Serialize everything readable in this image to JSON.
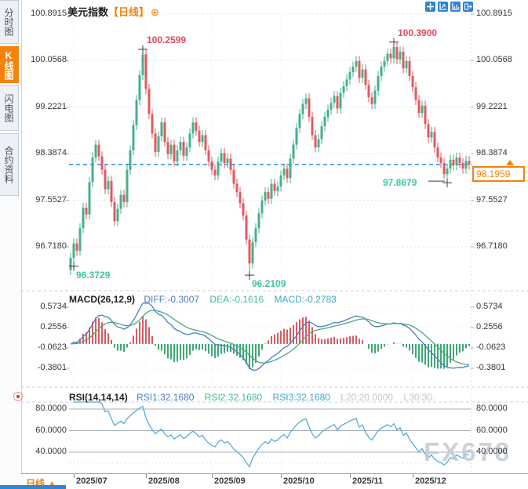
{
  "header": {
    "title": "美元指数",
    "period": "【日线】",
    "add_icon": "⊕",
    "toolbar_icons": [
      "crosshair-icon",
      "scale-axis-icon",
      "bar-scale-icon",
      "exit-icon"
    ]
  },
  "sidebar": {
    "tabs": [
      {
        "label": "分时图",
        "active": false
      },
      {
        "label": "K线图",
        "active": true
      },
      {
        "label": "闪电图",
        "active": false
      },
      {
        "label": "合约资料",
        "active": false
      }
    ]
  },
  "main_chart": {
    "current_price_label": "98.1959",
    "price_axis_labels": [
      "100.8915",
      "100.0568",
      "99.2221",
      "98.3874",
      "97.5527",
      "96.7180"
    ]
  },
  "macd_panel": {
    "name": "MACD(26,12,9)",
    "diff_label": "DIFF:-0.3007",
    "dea_label": "DEA:-0.1616",
    "macd_label": "MACD:-0.2783",
    "axis_labels": [
      "0.5734",
      "0.2556",
      "-0.0623",
      "-0.3801"
    ]
  },
  "rsi_panel": {
    "name": "RSI(14,14,14)",
    "rsi1_label": "RSI1:32.1680",
    "rsi2_label": "RSI2:32.1680",
    "rsi3_label": "RSI3:32.1680",
    "l20_label": "L20:20.0000",
    "l30_label": "L30:30.",
    "axis_labels": [
      "80.0000",
      "60.0000",
      "40.0000"
    ]
  },
  "bottom_bar": {
    "period_label": "日线",
    "period_arrow": "▲"
  },
  "watermark": "FX678",
  "colors": {
    "up": "#45b18a",
    "down": "#e15a5f",
    "hist_pos": "#d65b60",
    "hist_neg": "#3fa878",
    "diff_line": "#4a7ec2",
    "dea_line": "#4ba97a",
    "rsi_line": "#57abd9",
    "current_line": "#1e7fe8",
    "accent_orange": "#f5820a",
    "ann_high": "#e4485c",
    "ann_low": "#3ec6a0",
    "grid": "#dfe3e9",
    "grid_month": "#e6e9f0",
    "rsi_grid": "#aab0ba",
    "separator": "#ccd2da"
  },
  "chart_data": {
    "type": "candlestick",
    "title": "美元指数 日线",
    "current_price": 98.1959,
    "price_axis": [
      100.8915,
      100.0568,
      99.2221,
      98.3874,
      97.5527,
      96.718
    ],
    "macd_axis": [
      0.5734,
      0.2556,
      -0.0623,
      -0.3801
    ],
    "rsi_axis": [
      80,
      60,
      40
    ],
    "rsi_extra_levels": [
      30
    ],
    "months": [
      {
        "bar": 1,
        "label": "2025/07"
      },
      {
        "bar": 24,
        "label": "2025/08"
      },
      {
        "bar": 45,
        "label": "2025/09"
      },
      {
        "bar": 67,
        "label": "2025/10"
      },
      {
        "bar": 89,
        "label": "2025/11"
      },
      {
        "bar": 109,
        "label": "2025/12"
      }
    ],
    "series": {
      "first_open": 96.3,
      "wick_pad": 0.09,
      "closes": [
        96.52,
        96.78,
        96.65,
        97.05,
        97.42,
        97.3,
        97.88,
        98.32,
        98.55,
        98.34,
        98.1,
        97.75,
        97.9,
        97.52,
        97.18,
        97.4,
        97.65,
        97.52,
        98.1,
        98.45,
        98.9,
        99.35,
        99.8,
        100.17,
        99.55,
        99.1,
        98.75,
        98.42,
        98.7,
        98.95,
        98.6,
        98.38,
        98.55,
        98.25,
        98.45,
        98.6,
        98.35,
        98.5,
        98.75,
        98.95,
        98.8,
        98.6,
        98.72,
        98.45,
        98.25,
        98.1,
        98.0,
        98.25,
        98.4,
        98.22,
        98.3,
        98.1,
        97.85,
        97.7,
        97.5,
        97.28,
        96.85,
        96.42,
        96.8,
        97.05,
        97.32,
        97.55,
        97.7,
        97.58,
        97.85,
        97.72,
        97.8,
        98.0,
        98.12,
        97.95,
        98.3,
        98.55,
        98.85,
        99.1,
        99.28,
        99.38,
        99.05,
        98.72,
        98.5,
        98.65,
        98.88,
        99.05,
        99.18,
        99.3,
        99.42,
        99.2,
        99.48,
        99.6,
        99.72,
        99.85,
        99.95,
        100.05,
        99.75,
        99.9,
        99.62,
        99.4,
        99.28,
        99.52,
        99.78,
        99.95,
        100.05,
        100.18,
        100.1,
        100.3,
        100.08,
        100.22,
        99.92,
        100.05,
        99.78,
        99.58,
        99.35,
        99.12,
        99.25,
        98.92,
        98.68,
        98.78,
        98.5,
        98.32,
        98.22,
        98.02,
        98.12,
        98.28,
        98.18,
        98.32,
        98.22,
        98.12,
        98.26,
        98.1959
      ],
      "overrides": {
        "1": {
          "low": 96.3729
        },
        "23": {
          "high": 100.2599
        },
        "57": {
          "low": 96.2109
        },
        "103": {
          "high": 100.39
        },
        "120": {
          "low": 97.8679
        }
      }
    },
    "indicators": {
      "macd_params": [
        26,
        12,
        9
      ],
      "rsi_params": [
        14,
        14,
        14
      ]
    },
    "annotations": [
      {
        "text": "100.2599",
        "bar": 23,
        "price": 100.2599,
        "kind": "high",
        "color": "#e4485c"
      },
      {
        "text": "100.3900",
        "bar": 103,
        "price": 100.39,
        "kind": "high",
        "color": "#e4485c"
      },
      {
        "text": "96.3729",
        "bar": 1,
        "price": 96.3729,
        "kind": "low",
        "color": "#3ec6a0"
      },
      {
        "text": "96.2109",
        "bar": 57,
        "price": 96.2109,
        "kind": "low",
        "color": "#3ec6a0"
      },
      {
        "text": "97.8679",
        "bar": 120,
        "price": 97.8679,
        "kind": "low-left",
        "color": "#3ec6a0"
      }
    ]
  }
}
